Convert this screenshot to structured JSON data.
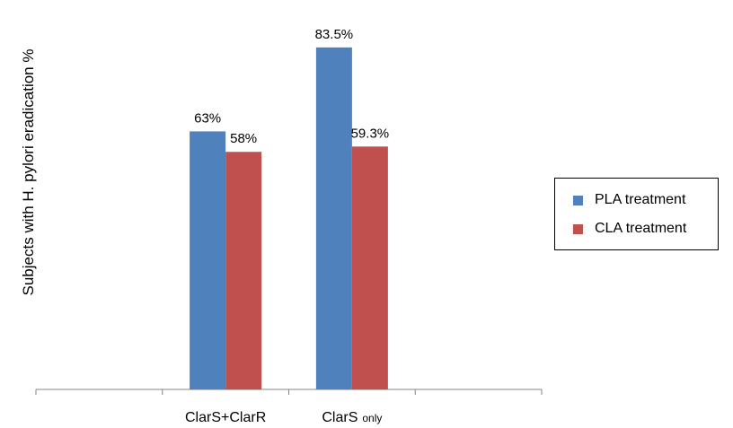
{
  "chart_data": {
    "type": "bar",
    "ylabel": "Subjects with H. pylori eradication %",
    "xlabel": "",
    "categories": [
      {
        "main": "",
        "sub": ""
      },
      {
        "main": "ClarS+ClarR",
        "sub": ""
      },
      {
        "main": "ClarS",
        "sub": "only"
      },
      {
        "main": "",
        "sub": ""
      }
    ],
    "series": [
      {
        "name": "PLA treatment",
        "color": "#4f81bd",
        "values": [
          null,
          63,
          83.5,
          null
        ],
        "labels": [
          "",
          "63%",
          "83.5%",
          ""
        ]
      },
      {
        "name": "CLA treatment",
        "color": "#c0504d",
        "values": [
          null,
          58,
          59.3,
          null
        ],
        "labels": [
          "",
          "58%",
          "59.3%",
          ""
        ]
      }
    ],
    "ylim": [
      0,
      85
    ],
    "grid": false,
    "legend_position": "right"
  }
}
